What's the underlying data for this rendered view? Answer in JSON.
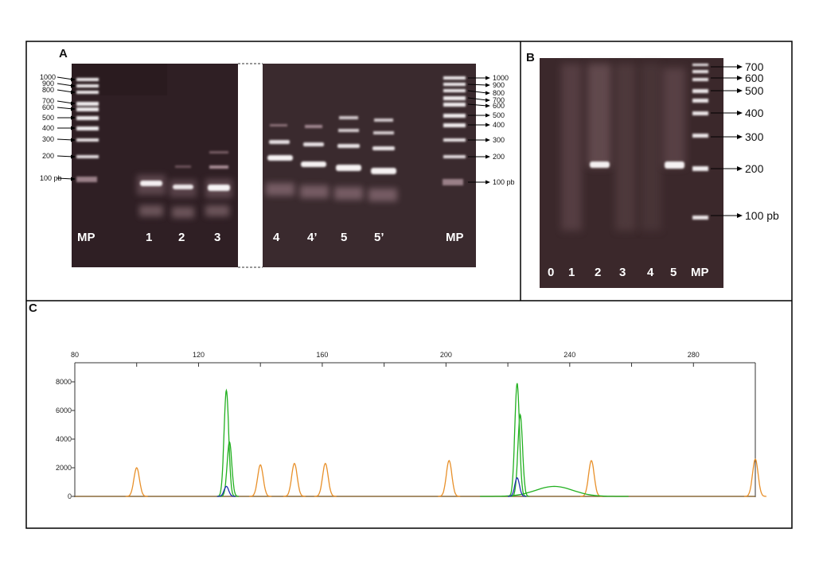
{
  "panels": {
    "a": {
      "letter": "A",
      "left_markers": [
        "1000",
        "900",
        "800",
        "700",
        "600",
        "500",
        "400",
        "300",
        "200",
        "100 pb"
      ],
      "right_markers": [
        "1000",
        "900",
        "800",
        "700",
        "600",
        "500",
        "400",
        "300",
        "200",
        "100 pb"
      ],
      "lanes_left": [
        "MP",
        "1",
        "2",
        "3"
      ],
      "lanes_right": [
        "4",
        "4’",
        "5",
        "5’",
        "MP"
      ]
    },
    "b": {
      "letter": "B",
      "markers": [
        "700",
        "600",
        "500",
        "400",
        "300",
        "200",
        "100 pb"
      ],
      "lanes": [
        "0",
        "1",
        "2",
        "3",
        "4",
        "5",
        "MP"
      ]
    },
    "c": {
      "letter": "C",
      "x_ticks": [
        "80",
        "120",
        "160",
        "200",
        "240",
        "280"
      ],
      "y_ticks": [
        "8000",
        "6000",
        "4000",
        "2000",
        "0"
      ]
    }
  },
  "chart_data": {
    "type": "line",
    "x_range": [
      80,
      300
    ],
    "y_range": [
      0,
      9000
    ],
    "x_ticks": [
      80,
      120,
      160,
      200,
      240,
      280
    ],
    "y_ticks": [
      0,
      2000,
      4000,
      6000,
      8000
    ],
    "grid": false,
    "series": [
      {
        "color": "#e8902a",
        "peaks": [
          {
            "x": 100,
            "y": 2000
          },
          {
            "x": 140,
            "y": 2200
          },
          {
            "x": 151,
            "y": 2300
          },
          {
            "x": 161,
            "y": 2300
          },
          {
            "x": 201,
            "y": 2500
          },
          {
            "x": 247,
            "y": 2500
          },
          {
            "x": 300,
            "y": 2600
          }
        ]
      },
      {
        "color": "#22b020",
        "peaks": [
          {
            "x": 129,
            "y": 7400
          },
          {
            "x": 130,
            "y": 3800
          },
          {
            "x": 223,
            "y": 7900
          },
          {
            "x": 224,
            "y": 5700
          },
          {
            "x": 235,
            "y": 700
          }
        ]
      },
      {
        "color": "#2030b0",
        "peaks": [
          {
            "x": 129,
            "y": 700
          },
          {
            "x": 223,
            "y": 1300
          }
        ]
      },
      {
        "color": "#d02020",
        "peaks": []
      }
    ]
  }
}
